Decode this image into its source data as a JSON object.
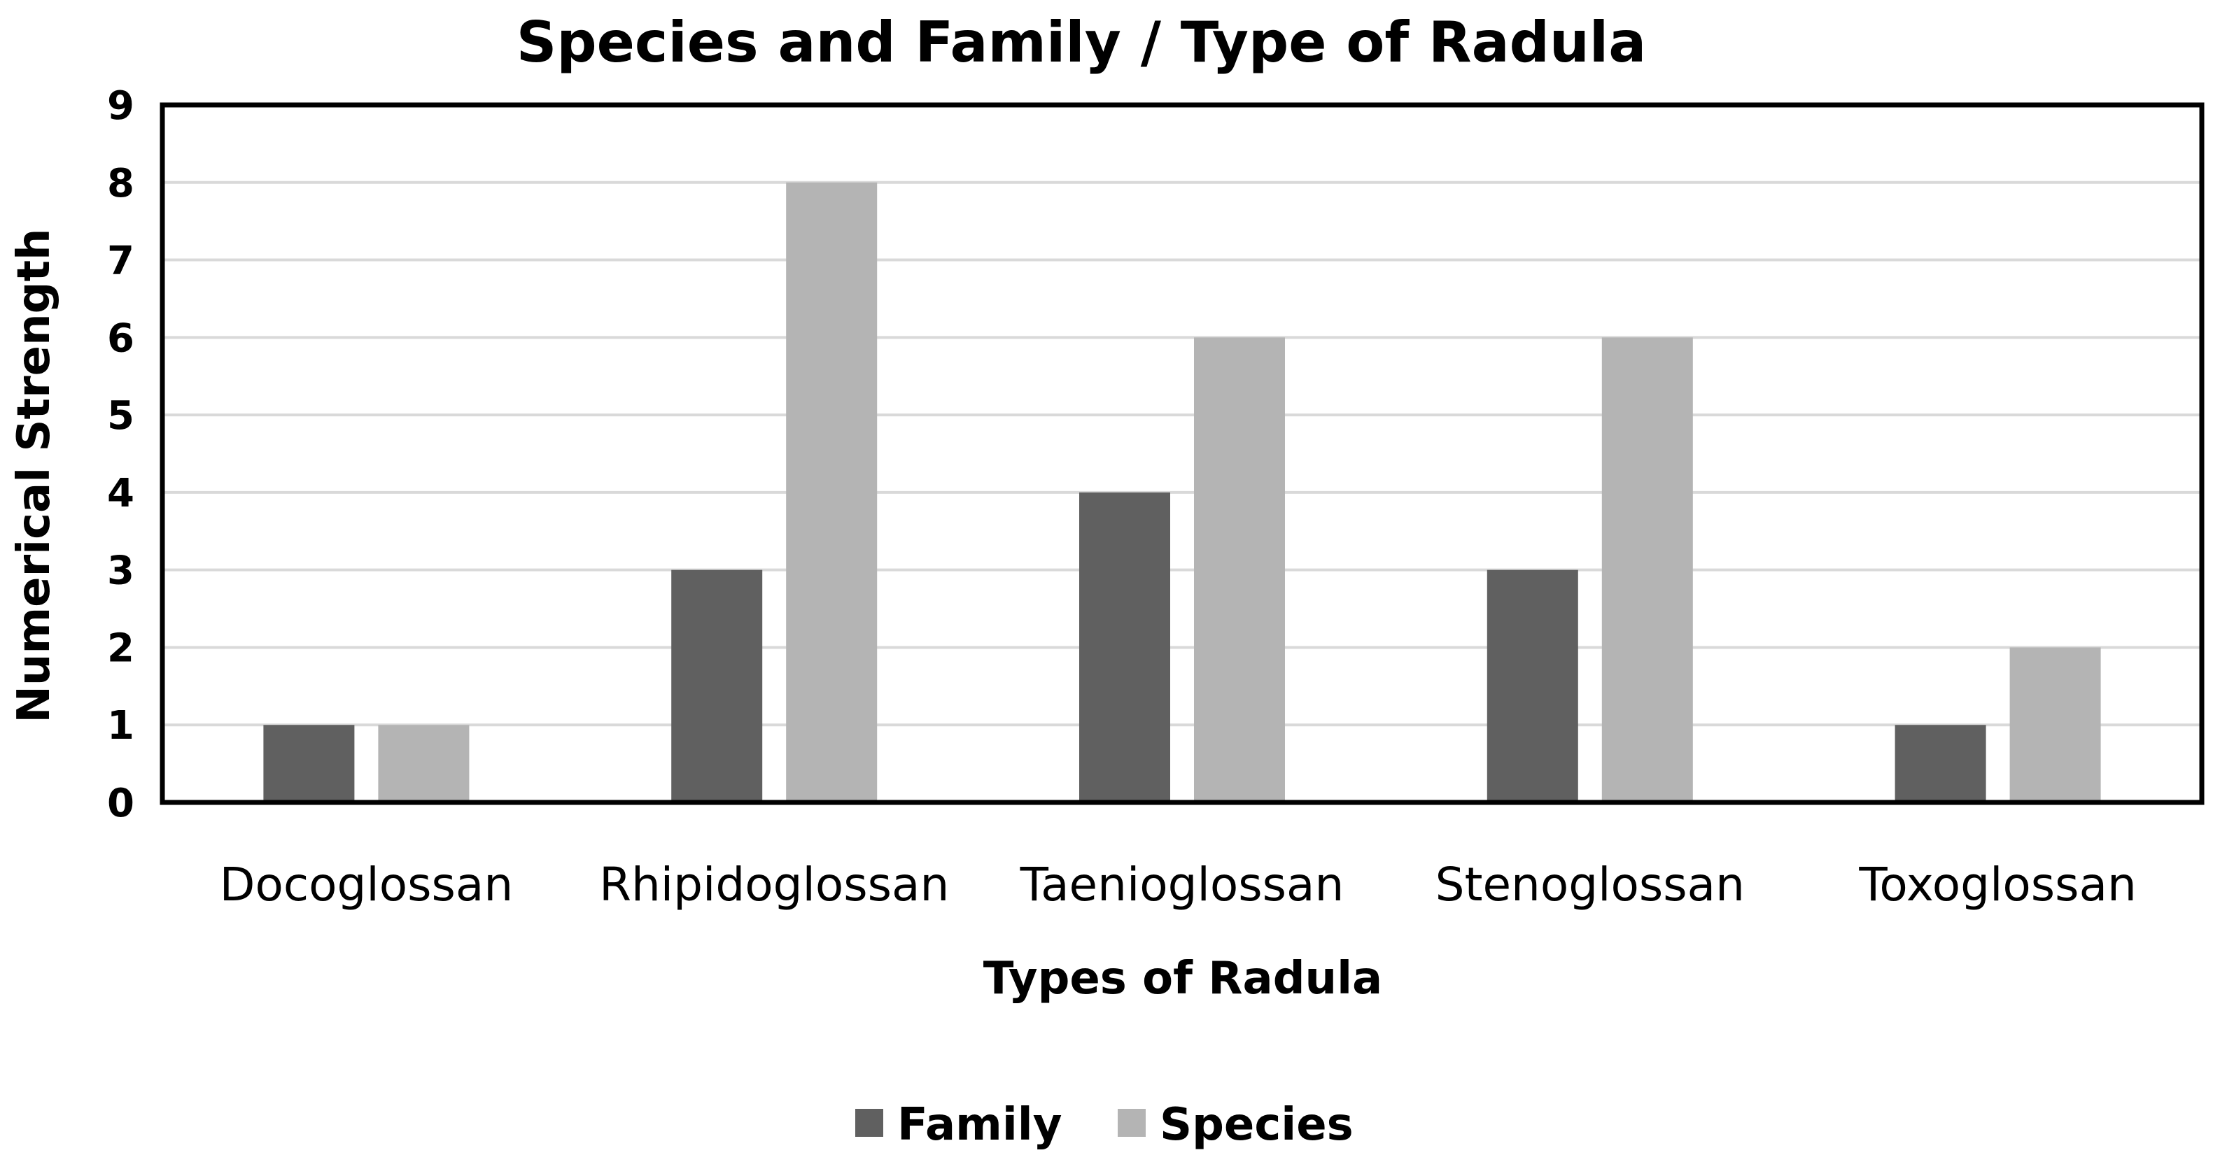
{
  "chart_data": {
    "type": "bar",
    "title": "Species and Family / Type of Radula",
    "xlabel": "Types of Radula",
    "ylabel": "Numerical Strength",
    "categories": [
      "Docoglossan",
      "Rhipidoglossan",
      "Taenioglossan",
      "Stenoglossan",
      "Toxoglossan"
    ],
    "series": [
      {
        "name": "Family",
        "color": "#606060",
        "values": [
          1,
          3,
          4,
          3,
          1
        ]
      },
      {
        "name": "Species",
        "color": "#b4b4b4",
        "values": [
          1,
          8,
          6,
          6,
          2
        ]
      }
    ],
    "ylim": [
      0,
      9
    ],
    "yticks": [
      "0",
      "1",
      "2",
      "3",
      "4",
      "5",
      "6",
      "7",
      "8",
      "9"
    ],
    "grid": true,
    "legend_position": "bottom"
  }
}
